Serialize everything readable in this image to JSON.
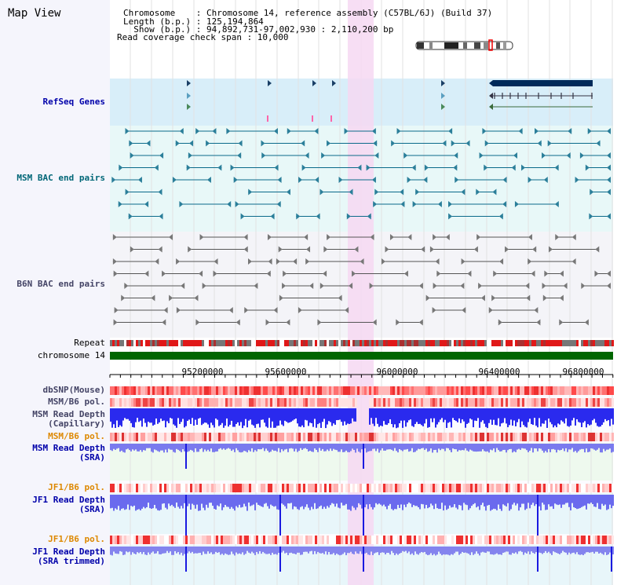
{
  "page_title": "Map View",
  "info": {
    "line1": "Chromosome    : Chromosome 14, reference assembly (C57BL/6J) (Build 37)",
    "line2": "Length (b.p.) : 125,194,864",
    "line3": "  Show (b.p.) : 94,892,731-97,002,930 : 2,110,200 bp",
    "line4": "Read coverage check span : 10,000"
  },
  "tracks": {
    "refseq": "RefSeq Genes",
    "msm_bac": "MSM BAC end pairs",
    "b6n_bac": "B6N BAC end pairs",
    "repeat": "Repeat",
    "chromosome": "chromosome 14",
    "dbsnp": "dbSNP(Mouse)",
    "msm_b6_pol_1": "MSM/B6 pol.",
    "msm_rd_cap_1": "MSM Read Depth",
    "msm_rd_cap_2": "(Capillary)",
    "msm_b6_pol_2": "MSM/B6 pol.",
    "msm_rd_sra_1": "MSM Read Depth",
    "msm_rd_sra_2": "(SRA)",
    "jf1_b6_pol_1": "JF1/B6 pol.",
    "jf1_rd_sra_1": "JF1 Read Depth",
    "jf1_rd_sra_2": "(SRA)",
    "jf1_b6_pol_2": "JF1/B6 pol.",
    "jf1_rd_trim_1": "JF1 Read Depth",
    "jf1_rd_trim_2": "(SRA trimmed)"
  },
  "axis_ticks": [
    "95200000",
    "95600000",
    "96000000",
    "96400000",
    "96800000"
  ],
  "colors": {
    "refseq_bg": "#d8eef9",
    "msm_bac_bg": "#e8f8f8",
    "b6n_bac_bg": "#f4f4f8",
    "highlight": "#f6d8f2",
    "chromosome": "#006600",
    "depth_blue": "#2222ee",
    "depth_light": "#7777ee",
    "label_blue": "#0000aa",
    "label_teal": "#006677",
    "label_orange": "#dd8800",
    "label_gray": "#444466"
  }
}
